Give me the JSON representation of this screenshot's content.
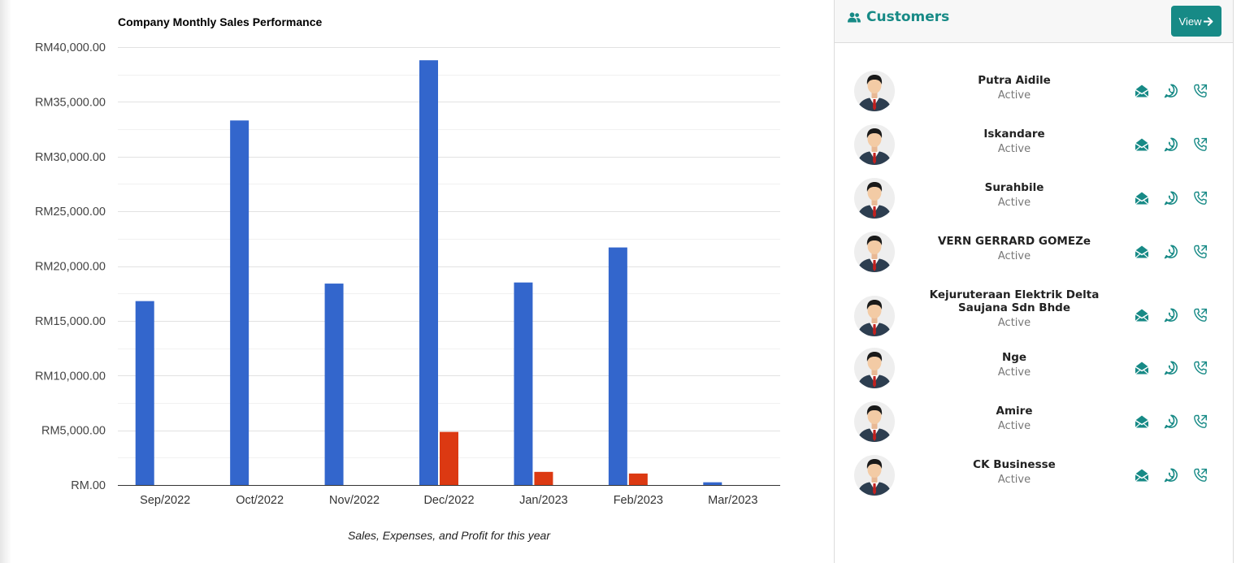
{
  "chart_data": {
    "type": "bar",
    "title": "Company Monthly Sales Performance",
    "caption": "Sales, Expenses, and Profit for this year",
    "categories": [
      "Sep/2022",
      "Oct/2022",
      "Nov/2022",
      "Dec/2022",
      "Jan/2023",
      "Feb/2023",
      "Mar/2023"
    ],
    "series": [
      {
        "values": [
          16800,
          33300,
          18400,
          38800,
          18500,
          21700,
          250
        ],
        "color": "#3366cc"
      },
      {
        "values": [
          0,
          0,
          0,
          4850,
          1200,
          1050,
          0
        ],
        "color": "#dc3912"
      },
      {
        "values": [
          0,
          0,
          0,
          0,
          0,
          0,
          0
        ],
        "color": "#ff9900"
      }
    ],
    "ylim": [
      0,
      40000
    ],
    "yticks": [
      0,
      5000,
      10000,
      15000,
      20000,
      25000,
      30000,
      35000,
      40000
    ],
    "ytick_labels": [
      "RM.00",
      "RM5,000.00",
      "RM10,000.00",
      "RM15,000.00",
      "RM20,000.00",
      "RM25,000.00",
      "RM30,000.00",
      "RM35,000.00",
      "RM40,000.00"
    ],
    "grid": true,
    "legend": "none"
  },
  "customers_panel": {
    "title": "Customers",
    "title_icon": "users-icon",
    "view_label": "View",
    "accent_color": "#178a86",
    "customers": [
      {
        "name": "Putra Aidile",
        "status": "Active"
      },
      {
        "name": "Iskandare",
        "status": "Active"
      },
      {
        "name": "Surahbile",
        "status": "Active"
      },
      {
        "name": "VERN GERRARD GOMEZe",
        "status": "Active"
      },
      {
        "name": "Kejuruteraan Elektrik Delta Saujana Sdn Bhde",
        "status": "Active"
      },
      {
        "name": "Nge",
        "status": "Active"
      },
      {
        "name": "Amire",
        "status": "Active"
      },
      {
        "name": "CK Businesse",
        "status": "Active"
      }
    ],
    "action_icons": [
      "email-icon",
      "whatsapp-icon",
      "phone-icon"
    ]
  }
}
